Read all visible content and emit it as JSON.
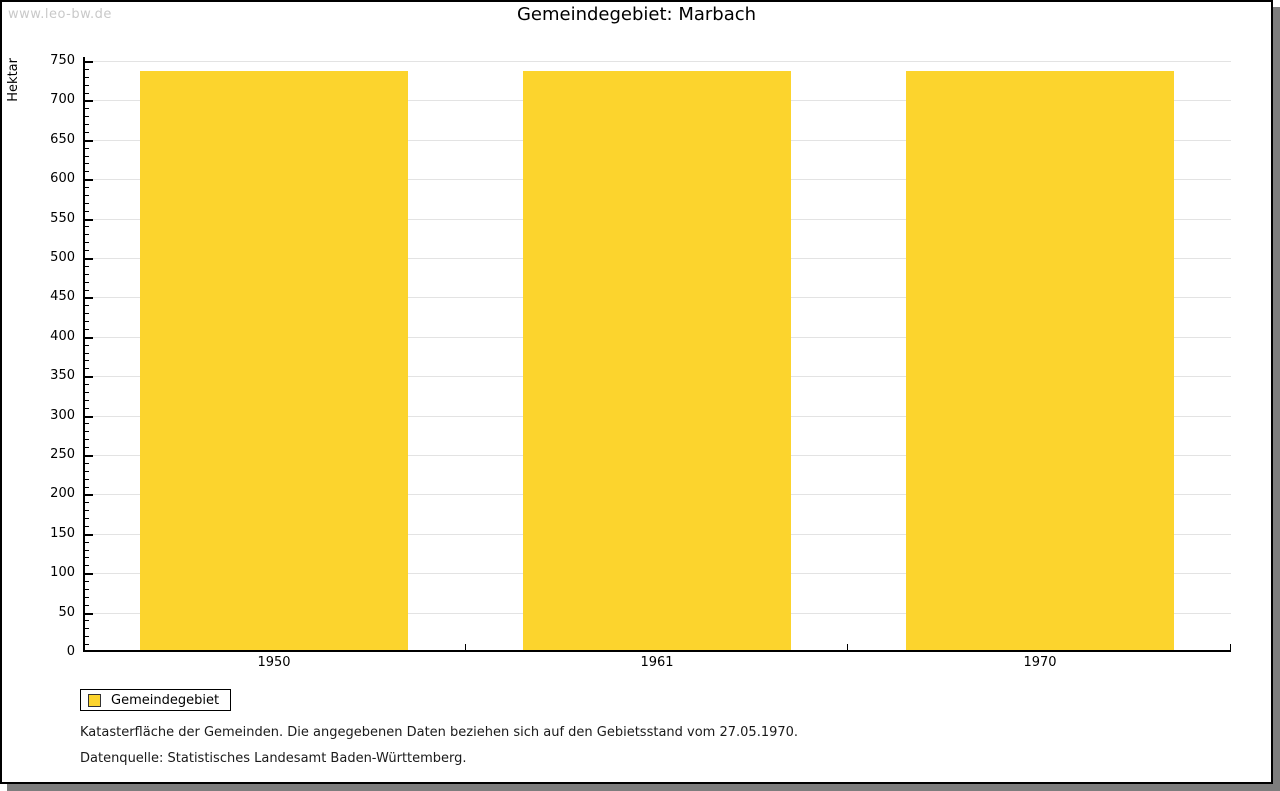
{
  "watermark": "www.leo-bw.de",
  "title": "Gemeindegebiet: Marbach",
  "chart_data": {
    "type": "bar",
    "title": "Gemeindegebiet: Marbach",
    "categories": [
      "1950",
      "1961",
      "1970"
    ],
    "series": [
      {
        "name": "Gemeindegebiet",
        "values": [
          737,
          737,
          737
        ]
      }
    ],
    "xlabel": "",
    "ylabel": "Hektar",
    "ylim": [
      0,
      750
    ],
    "y_major_tick": 50,
    "y_minor_tick": 10,
    "grid": "horizontal-major",
    "legend_position": "bottom-left",
    "bar_color": "#fcd42d"
  },
  "legend": {
    "items": [
      {
        "label": "Gemeindegebiet",
        "color": "#fcd42d"
      }
    ]
  },
  "footer": {
    "line1": "Katasterfläche der Gemeinden. Die angegebenen Daten beziehen sich auf den Gebietsstand vom 27.05.1970.",
    "line2": "Datenquelle: Statistisches Landesamt Baden-Württemberg."
  },
  "colors": {
    "bar": "#fcd42d",
    "grid": "#e3e3e3",
    "axis": "#000000",
    "watermark": "#c9c9c9",
    "shadow": "#7d7d7d",
    "background": "#ffffff"
  }
}
